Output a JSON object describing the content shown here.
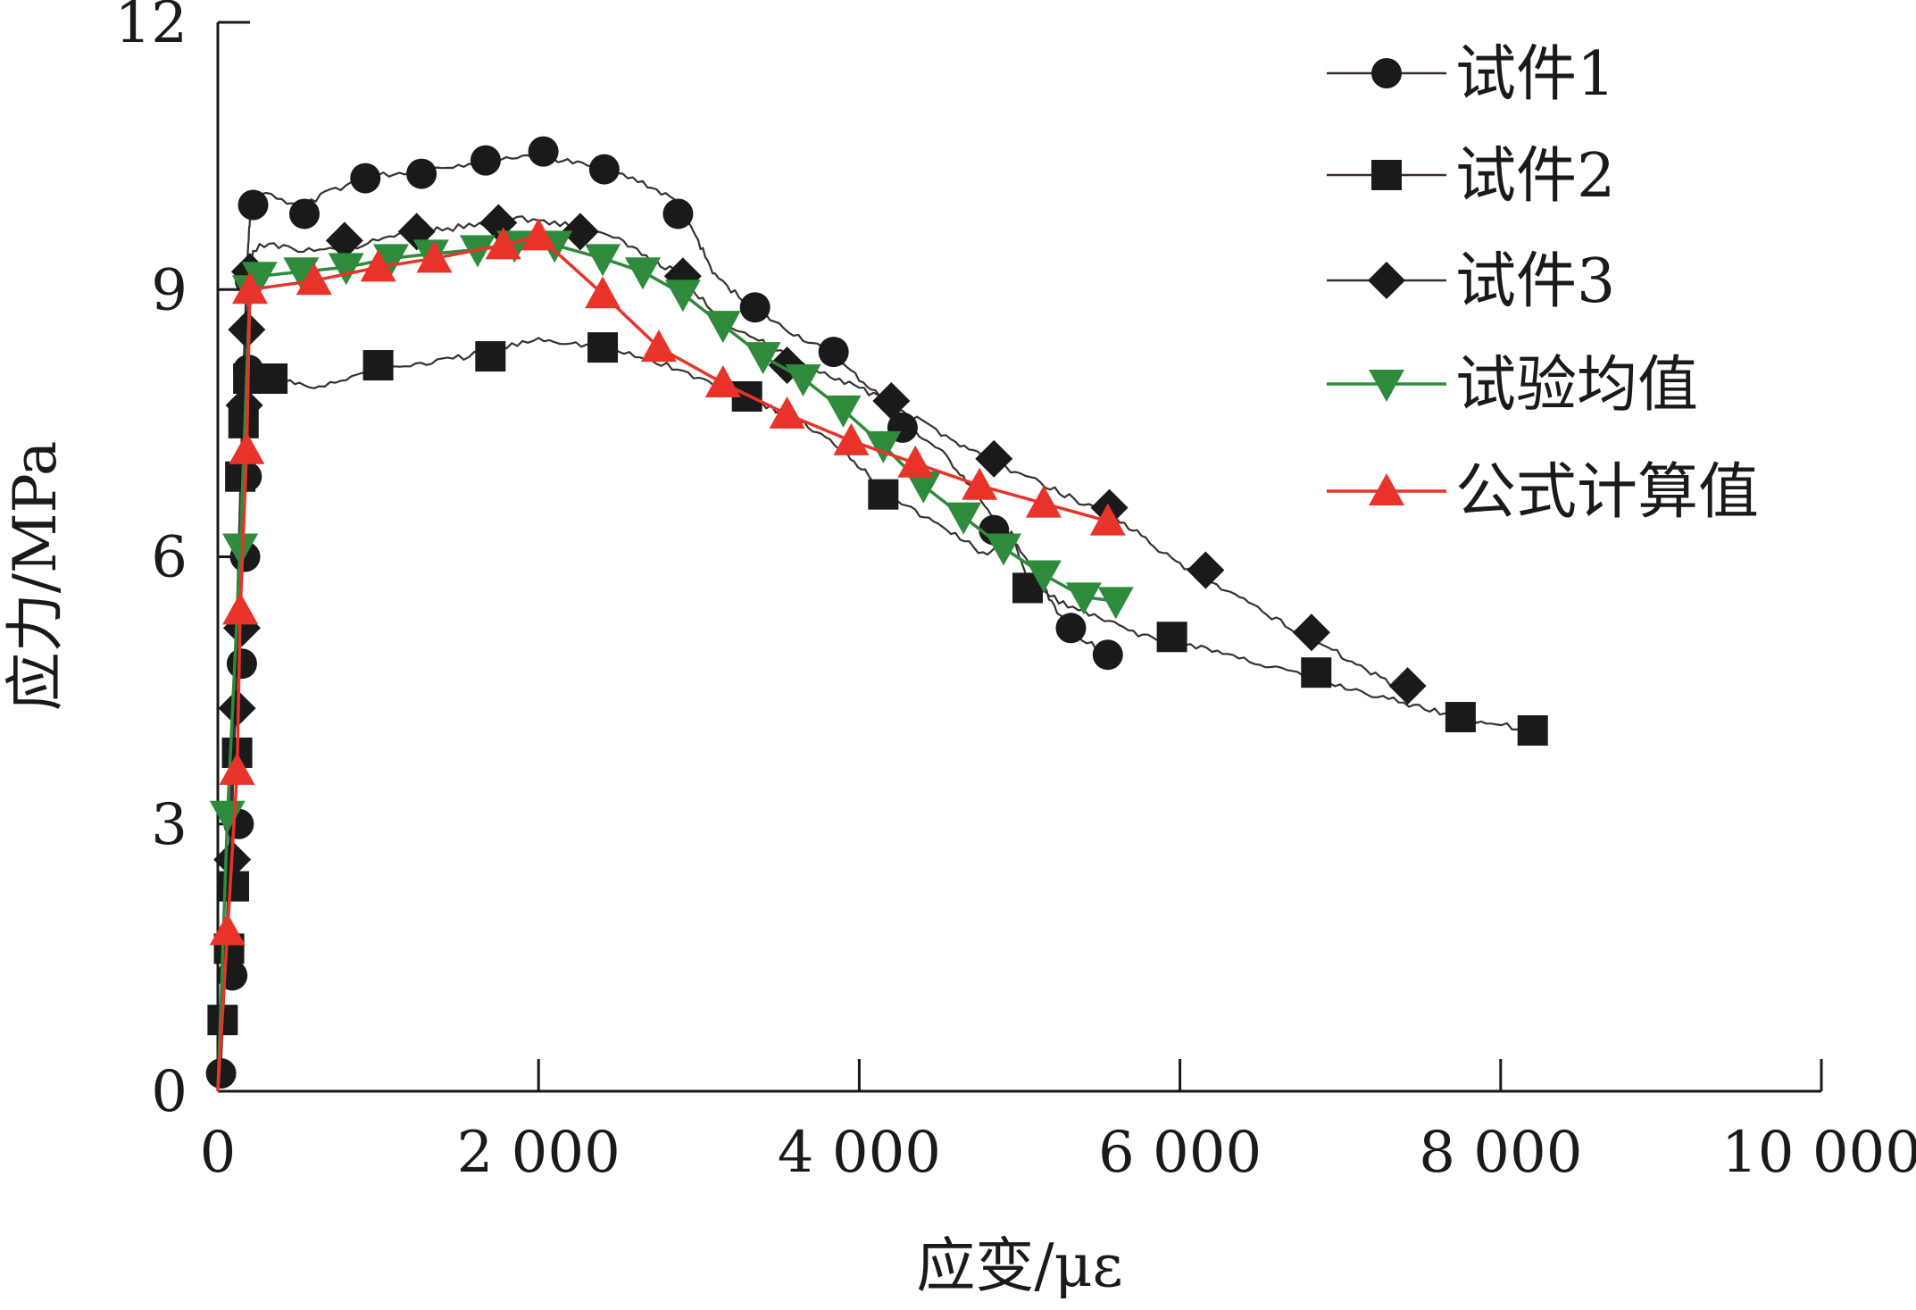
{
  "chart_data": {
    "type": "line",
    "title": "",
    "xlabel": "应变/με",
    "ylabel": "应力/MPa",
    "xlim": [
      0,
      10000
    ],
    "ylim": [
      0,
      12
    ],
    "x_ticks": [
      0,
      2000,
      4000,
      6000,
      8000,
      10000
    ],
    "x_tick_labels": [
      "0",
      "2 000",
      "4 000",
      "6 000",
      "8 000",
      "10 000"
    ],
    "y_ticks": [
      0,
      3,
      6,
      9,
      12
    ],
    "y_tick_labels": [
      "0",
      "3",
      "6",
      "9",
      "12"
    ],
    "grid": false,
    "legend_position": "top-right",
    "series": [
      {
        "name": "试件1",
        "color": "#1a1a1a",
        "marker": "circle",
        "style": "noisy-thin",
        "line_x": [
          0,
          20,
          45,
          80,
          110,
          140,
          160,
          180,
          200,
          230,
          300,
          400,
          550,
          700,
          900,
          1100,
          1300,
          1500,
          1700,
          1900,
          2000,
          2150,
          2400,
          2650,
          2850,
          2980,
          3100,
          3300,
          3500,
          3800,
          4000,
          4200,
          4350,
          4500,
          4650,
          4800,
          4950,
          5100,
          5300,
          5420,
          5600
        ],
        "line_y": [
          0,
          0.3,
          1.3,
          3.2,
          4.8,
          6.8,
          8.1,
          9.2,
          9.8,
          10.1,
          10.1,
          10.0,
          9.95,
          10.1,
          10.25,
          10.3,
          10.35,
          10.4,
          10.45,
          10.5,
          10.5,
          10.45,
          10.35,
          10.2,
          10.0,
          9.6,
          9.15,
          8.85,
          8.6,
          8.3,
          8.0,
          7.7,
          7.4,
          7.2,
          6.9,
          6.5,
          6.2,
          5.8,
          5.2,
          5.05,
          4.85
        ],
        "marker_x": [
          20,
          90,
          130,
          150,
          170,
          180,
          190,
          200,
          220,
          540,
          920,
          1270,
          1670,
          2030,
          2410,
          2870,
          3350,
          3840,
          4270,
          4840,
          5320,
          5550
        ],
        "marker_y": [
          0.2,
          1.3,
          3.0,
          4.8,
          6.0,
          6.9,
          8.1,
          9.1,
          9.95,
          9.85,
          10.25,
          10.3,
          10.45,
          10.55,
          10.35,
          9.85,
          8.8,
          8.3,
          7.45,
          6.3,
          5.2,
          4.9
        ]
      },
      {
        "name": "试件2",
        "color": "#1a1a1a",
        "marker": "square",
        "style": "noisy-thin",
        "line_x": [
          0,
          30,
          60,
          90,
          120,
          150,
          175,
          200,
          230,
          280,
          350,
          450,
          600,
          800,
          1000,
          1200,
          1400,
          1700,
          2000,
          2200,
          2400,
          2600,
          2800,
          3000,
          3300,
          3600,
          3900,
          4150,
          4350,
          4600,
          4800,
          4950,
          5050,
          5300,
          5500,
          5800,
          6100,
          6500,
          6900,
          7300,
          7750,
          8200
        ],
        "line_y": [
          0,
          0.8,
          1.8,
          3.2,
          4.8,
          6.5,
          7.5,
          7.9,
          8.0,
          8.0,
          8.0,
          7.95,
          7.9,
          8.0,
          8.1,
          8.15,
          8.2,
          8.3,
          8.45,
          8.4,
          8.35,
          8.25,
          8.15,
          8.0,
          7.8,
          7.55,
          7.2,
          6.75,
          6.5,
          6.25,
          6.0,
          6.3,
          5.7,
          5.45,
          5.3,
          5.1,
          5.0,
          4.8,
          4.6,
          4.4,
          4.2,
          4.05
        ],
        "marker_x": [
          30,
          70,
          100,
          120,
          140,
          160,
          190,
          340,
          1000,
          1700,
          2400,
          3300,
          4150,
          5050,
          5950,
          6850,
          7750,
          8200
        ],
        "marker_y": [
          0.8,
          1.6,
          2.3,
          3.8,
          6.9,
          7.5,
          8.0,
          8.0,
          8.15,
          8.25,
          8.35,
          7.8,
          6.7,
          5.65,
          5.1,
          4.7,
          4.2,
          4.05
        ]
      },
      {
        "name": "试件3",
        "color": "#1a1a1a",
        "marker": "diamond",
        "style": "noisy-thin",
        "line_x": [
          0,
          40,
          80,
          110,
          140,
          160,
          180,
          200,
          220,
          260,
          350,
          500,
          700,
          900,
          1100,
          1300,
          1500,
          1700,
          1900,
          2100,
          2300,
          2500,
          2700,
          2850,
          2950,
          3200,
          3600,
          4000,
          4300,
          4600,
          4850,
          5100,
          5400,
          5600,
          6000,
          6400,
          6800,
          7100,
          7400
        ],
        "line_y": [
          0,
          1.3,
          2.6,
          4.3,
          6.2,
          7.6,
          8.6,
          9.2,
          9.4,
          9.5,
          9.5,
          9.45,
          9.45,
          9.5,
          9.6,
          9.65,
          9.7,
          9.75,
          9.8,
          9.75,
          9.7,
          9.55,
          9.35,
          9.2,
          9.0,
          8.6,
          8.2,
          7.9,
          7.6,
          7.3,
          7.05,
          6.85,
          6.6,
          6.45,
          5.9,
          5.5,
          5.1,
          4.8,
          4.5
        ],
        "marker_x": [
          90,
          120,
          150,
          165,
          180,
          200,
          790,
          1240,
          1750,
          2260,
          2900,
          3550,
          4200,
          4840,
          5560,
          6160,
          6820,
          7420
        ],
        "marker_y": [
          2.6,
          4.3,
          5.2,
          7.7,
          8.55,
          9.2,
          9.55,
          9.65,
          9.75,
          9.65,
          9.15,
          8.15,
          7.75,
          7.1,
          6.55,
          5.85,
          5.15,
          4.55
        ]
      },
      {
        "name": "试验均值",
        "color": "#2e8b3c",
        "marker": "triangle-down",
        "style": "smooth",
        "x": [
          0,
          60,
          140,
          200,
          260,
          520,
          800,
          1080,
          1330,
          1620,
          1850,
          2100,
          2400,
          2650,
          2900,
          3150,
          3400,
          3650,
          3900,
          4150,
          4400,
          4650,
          4900,
          5150,
          5400,
          5600
        ],
        "y": [
          0,
          3.1,
          6.1,
          9.0,
          9.15,
          9.2,
          9.25,
          9.35,
          9.4,
          9.45,
          9.5,
          9.5,
          9.35,
          9.2,
          8.95,
          8.6,
          8.25,
          8.0,
          7.65,
          7.25,
          6.8,
          6.45,
          6.1,
          5.8,
          5.55,
          5.5
        ]
      },
      {
        "name": "公式计算值",
        "color": "#e8332a",
        "marker": "triangle-up",
        "style": "smooth",
        "x": [
          0,
          60,
          120,
          140,
          180,
          200,
          600,
          1000,
          1350,
          1780,
          2000,
          2400,
          2750,
          3150,
          3550,
          3950,
          4350,
          4750,
          5150,
          5550
        ],
        "y": [
          0,
          1.8,
          3.6,
          5.4,
          7.2,
          9.0,
          9.1,
          9.25,
          9.35,
          9.5,
          9.6,
          8.95,
          8.35,
          7.95,
          7.6,
          7.3,
          7.05,
          6.8,
          6.6,
          6.4
        ]
      }
    ]
  }
}
